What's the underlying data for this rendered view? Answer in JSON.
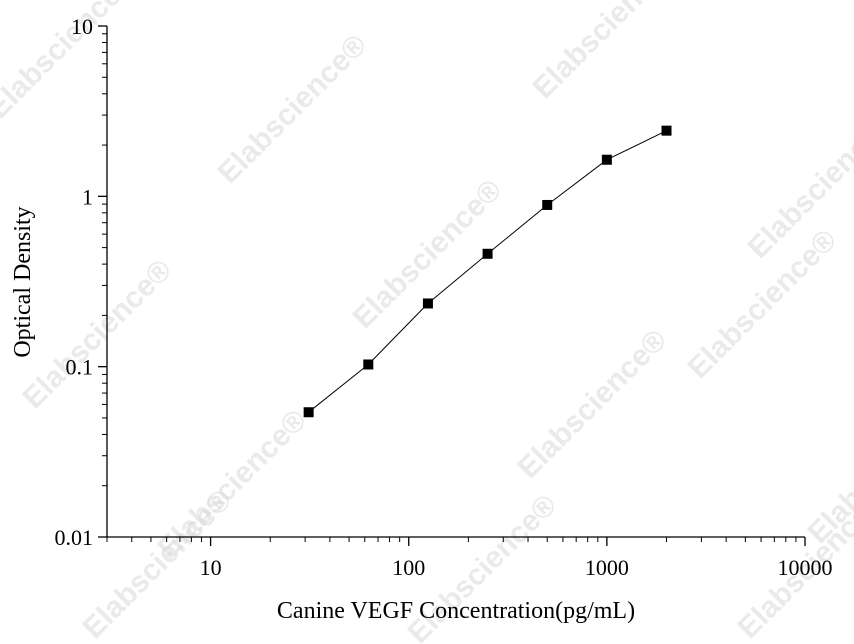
{
  "watermark": "Elabscience®",
  "chart_data": {
    "type": "scatter",
    "x_scale": "log",
    "y_scale": "log",
    "xlabel": "Canine VEGF Concentration(pg/mL)",
    "ylabel": "Optical Density",
    "xlim": [
      3,
      10000
    ],
    "ylim": [
      0.01,
      10
    ],
    "x_ticks": [
      10,
      100,
      1000,
      10000
    ],
    "x_tick_labels": [
      "10",
      "100",
      "1000",
      "10000"
    ],
    "y_ticks": [
      0.01,
      0.1,
      1,
      10
    ],
    "y_tick_labels": [
      "0.01",
      "0.1",
      "1",
      "10"
    ],
    "grid": false,
    "series": [
      {
        "marker": "square",
        "line": true,
        "color": "#000000",
        "x": [
          31.25,
          62.5,
          125,
          250,
          500,
          1000,
          2000
        ],
        "y": [
          0.054,
          0.103,
          0.235,
          0.46,
          0.89,
          1.64,
          2.43
        ]
      }
    ]
  }
}
